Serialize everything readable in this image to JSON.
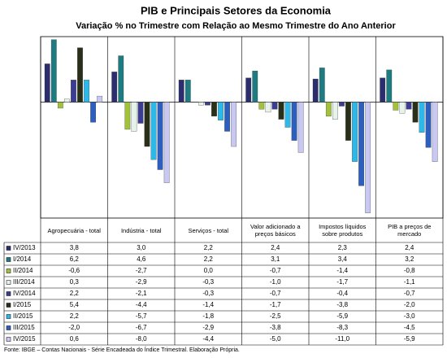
{
  "chart_data": {
    "type": "bar",
    "title": "PIB e Principais Setores da Economia",
    "subtitle": "Variação % no Trimestre com Relação ao Mesmo Trimestre do Ano Anterior",
    "source": "Fonte: IBGE – Contas Nacionais - Série Encadeada do Índice Trimestral. Elaboração Própria.",
    "categories": [
      "Agropecuária - total",
      "Indústria - total",
      "Serviços - total",
      "Valor adicionado a preços básicos",
      "Impostos líquidos sobre produtos",
      "PIB a preços de mercado"
    ],
    "ylim": [
      -11.5,
      6.5
    ],
    "series": [
      {
        "name": "IV/2013",
        "color": "#2b2d6e",
        "values": [
          3.8,
          3.0,
          2.2,
          2.4,
          2.3,
          2.4
        ],
        "value_labels": [
          "3,8",
          "3,0",
          "2,2",
          "2,4",
          "2,3",
          "2,4"
        ]
      },
      {
        "name": "I/2014",
        "color": "#1e7b82",
        "values": [
          6.2,
          4.6,
          2.2,
          3.1,
          3.4,
          3.2
        ],
        "value_labels": [
          "6,2",
          "4,6",
          "2,2",
          "3,1",
          "3,4",
          "3,2"
        ]
      },
      {
        "name": "II/2014",
        "color": "#a3c23c",
        "values": [
          -0.6,
          -2.7,
          0.0,
          -0.7,
          -1.4,
          -0.8
        ],
        "value_labels": [
          "-0,6",
          "-2,7",
          "0,0",
          "-0,7",
          "-1,4",
          "-0,8"
        ]
      },
      {
        "name": "III/2014",
        "color": "#e6f3ea",
        "values": [
          0.3,
          -2.9,
          -0.3,
          -1.0,
          -1.7,
          -1.1
        ],
        "value_labels": [
          "0,3",
          "-2,9",
          "-0,3",
          "-1,0",
          "-1,7",
          "-1,1"
        ]
      },
      {
        "name": "IV/2014",
        "color": "#3b3d92",
        "values": [
          2.2,
          -2.1,
          -0.3,
          -0.7,
          -0.4,
          -0.7
        ],
        "value_labels": [
          "2,2",
          "-2,1",
          "-0,3",
          "-0,7",
          "-0,4",
          "-0,7"
        ]
      },
      {
        "name": "I/2015",
        "color": "#28301a",
        "values": [
          5.4,
          -4.4,
          -1.4,
          -1.7,
          -3.8,
          -2.0
        ],
        "value_labels": [
          "5,4",
          "-4,4",
          "-1,4",
          "-1,7",
          "-3,8",
          "-2,0"
        ]
      },
      {
        "name": "II/2015",
        "color": "#2cb8e8",
        "values": [
          2.2,
          -5.7,
          -1.8,
          -2.5,
          -5.9,
          -3.0
        ],
        "value_labels": [
          "2,2",
          "-5,7",
          "-1,8",
          "-2,5",
          "-5,9",
          "-3,0"
        ]
      },
      {
        "name": "III/2015",
        "color": "#2c5fbf",
        "values": [
          -2.0,
          -6.7,
          -2.9,
          -3.8,
          -8.3,
          -4.5
        ],
        "value_labels": [
          "-2,0",
          "-6,7",
          "-2,9",
          "-3,8",
          "-8,3",
          "-4,5"
        ]
      },
      {
        "name": "IV/2015",
        "color": "#c8c8f2",
        "values": [
          0.6,
          -8.0,
          -4.4,
          -5.0,
          -11.0,
          -5.9
        ],
        "value_labels": [
          "0,6",
          "-8,0",
          "-4,4",
          "-5,0",
          "-11,0",
          "-5,9"
        ]
      }
    ]
  }
}
